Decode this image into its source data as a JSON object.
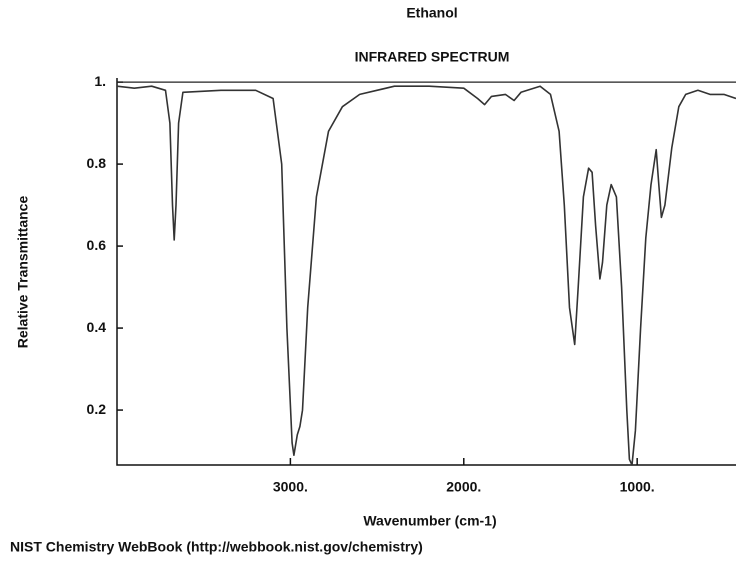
{
  "chart_data": {
    "type": "line",
    "title": "Ethanol",
    "subtitle": "INFRARED SPECTRUM",
    "x_label": "Wavenumber (cm-1)",
    "y_label": "Relative Transmittance",
    "source": "NIST Chemistry WebBook (http://webbook.nist.gov/chemistry)",
    "color": "#333333",
    "xlim": [
      4000,
      430
    ],
    "ylim": [
      0.066,
      1.01
    ],
    "xticks": [
      {
        "value": 3000,
        "label": "3000."
      },
      {
        "value": 2000,
        "label": "2000."
      },
      {
        "value": 1000,
        "label": "1000."
      }
    ],
    "yticks": [
      {
        "value": 1,
        "label": "1."
      },
      0.8,
      0.6,
      0.4,
      0.2
    ],
    "x": [
      4000,
      3900,
      3800,
      3720,
      3695,
      3680,
      3670,
      3660,
      3645,
      3620,
      3400,
      3200,
      3100,
      3050,
      3020,
      2990,
      2980,
      2960,
      2945,
      2930,
      2900,
      2850,
      2780,
      2700,
      2600,
      2400,
      2200,
      2000,
      1920,
      1880,
      1840,
      1760,
      1710,
      1670,
      1560,
      1500,
      1450,
      1420,
      1390,
      1360,
      1340,
      1310,
      1280,
      1260,
      1240,
      1215,
      1200,
      1175,
      1150,
      1120,
      1090,
      1060,
      1045,
      1030,
      1010,
      980,
      950,
      920,
      890,
      875,
      860,
      840,
      800,
      760,
      720,
      650,
      580,
      500,
      430
    ],
    "values": [
      0.99,
      0.985,
      0.99,
      0.98,
      0.9,
      0.7,
      0.615,
      0.7,
      0.9,
      0.975,
      0.98,
      0.98,
      0.96,
      0.8,
      0.4,
      0.12,
      0.09,
      0.14,
      0.16,
      0.2,
      0.45,
      0.72,
      0.88,
      0.94,
      0.97,
      0.99,
      0.99,
      0.985,
      0.96,
      0.945,
      0.965,
      0.97,
      0.955,
      0.975,
      0.99,
      0.97,
      0.88,
      0.7,
      0.45,
      0.36,
      0.5,
      0.72,
      0.79,
      0.78,
      0.65,
      0.52,
      0.56,
      0.7,
      0.75,
      0.72,
      0.5,
      0.2,
      0.08,
      0.066,
      0.15,
      0.4,
      0.62,
      0.75,
      0.835,
      0.75,
      0.67,
      0.7,
      0.84,
      0.94,
      0.97,
      0.98,
      0.97,
      0.97,
      0.96
    ]
  }
}
